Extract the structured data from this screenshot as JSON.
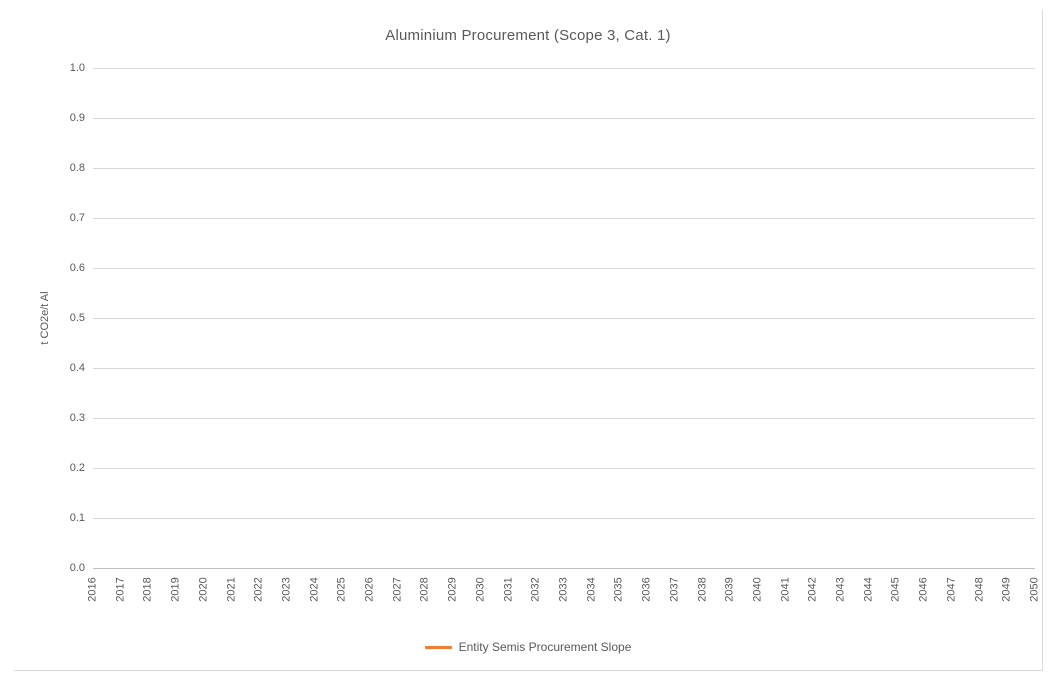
{
  "title": "Aluminium Procurement (Scope 3, Cat. 1)",
  "chart_data": {
    "type": "line",
    "title": "Aluminium Procurement (Scope 3, Cat. 1)",
    "xlabel": "",
    "ylabel": "t CO2e/t Al",
    "categories": [
      "2016",
      "2017",
      "2018",
      "2019",
      "2020",
      "2021",
      "2022",
      "2023",
      "2024",
      "2025",
      "2026",
      "2027",
      "2028",
      "2029",
      "2030",
      "2031",
      "2032",
      "2033",
      "2034",
      "2035",
      "2036",
      "2037",
      "2038",
      "2039",
      "2040",
      "2041",
      "2042",
      "2043",
      "2044",
      "2045",
      "2046",
      "2047",
      "2048",
      "2049",
      "2050"
    ],
    "y_ticks": [
      "0.0",
      "0.1",
      "0.2",
      "0.3",
      "0.4",
      "0.5",
      "0.6",
      "0.7",
      "0.8",
      "0.9",
      "1.0"
    ],
    "ylim": [
      0.0,
      1.0
    ],
    "grid": true,
    "legend_position": "bottom",
    "series": [
      {
        "name": "Entity Semis Procurement Slope",
        "color": "#ED7D31",
        "values": []
      }
    ]
  },
  "legend": {
    "items": [
      {
        "label": "Entity Semis Procurement Slope",
        "color": "#ED7D31"
      }
    ]
  },
  "colors": {
    "gridline": "#D9D9D9",
    "axis_line": "#BFBFBF",
    "text": "#595959",
    "chart_border": "#D9D9D9",
    "accent_orange": "#ED7D31"
  }
}
